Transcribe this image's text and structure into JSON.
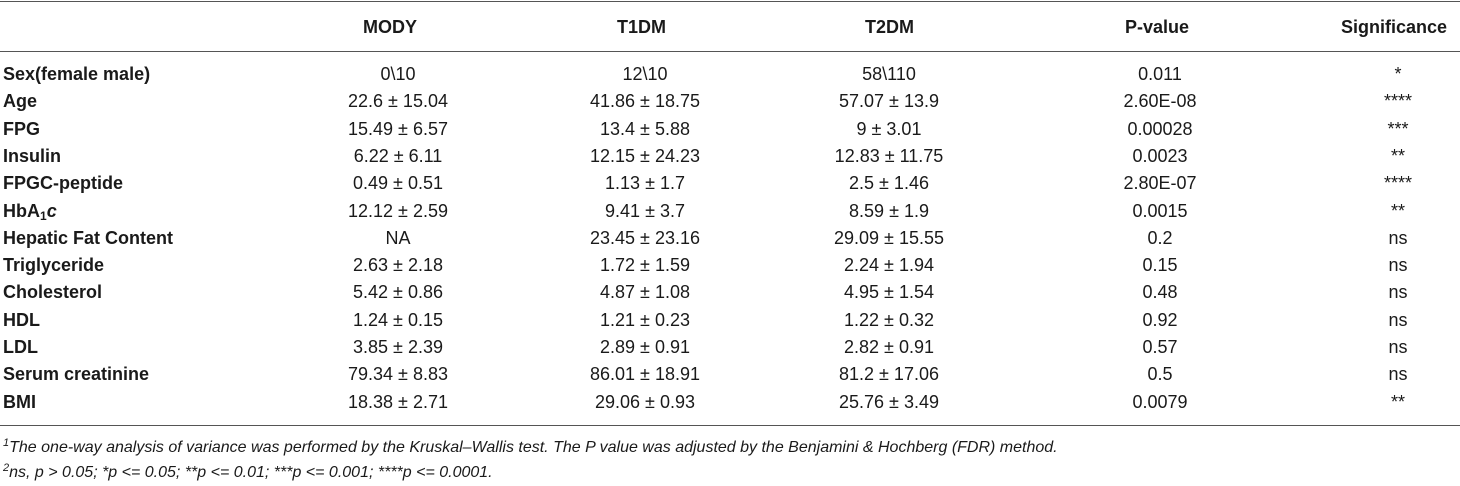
{
  "table": {
    "headers": [
      "MODY",
      "T1DM",
      "T2DM",
      "P-value",
      "Significance"
    ],
    "rows": [
      {
        "label": "Sex(female male)",
        "cells": [
          "0\\10",
          "12\\10",
          "58\\110",
          "0.011",
          "*"
        ]
      },
      {
        "label": "Age",
        "cells": [
          "22.6 ± 15.04",
          "41.86 ± 18.75",
          "57.07 ± 13.9",
          "2.60E-08",
          "****"
        ]
      },
      {
        "label": "FPG",
        "cells": [
          "15.49 ± 6.57",
          "13.4 ± 5.88",
          "9 ± 3.01",
          "0.00028",
          "***"
        ]
      },
      {
        "label": "Insulin",
        "cells": [
          "6.22 ± 6.11",
          "12.15 ± 24.23",
          "12.83 ± 11.75",
          "0.0023",
          "**"
        ]
      },
      {
        "label": "FPGC-peptide",
        "cells": [
          "0.49 ± 0.51",
          "1.13 ± 1.7",
          "2.5 ± 1.46",
          "2.80E-07",
          "****"
        ]
      },
      {
        "label": "HbA1c",
        "label_parts": {
          "base": "HbA",
          "sub": "1",
          "italic": "c"
        },
        "cells": [
          "12.12 ± 2.59",
          "9.41 ± 3.7",
          "8.59 ± 1.9",
          "0.0015",
          "**"
        ]
      },
      {
        "label": "Hepatic Fat Content",
        "cells": [
          "NA",
          "23.45 ± 23.16",
          "29.09 ± 15.55",
          "0.2",
          "ns"
        ]
      },
      {
        "label": "Triglyceride",
        "cells": [
          "2.63 ± 2.18",
          "1.72 ± 1.59",
          "2.24 ± 1.94",
          "0.15",
          "ns"
        ]
      },
      {
        "label": "Cholesterol",
        "cells": [
          "5.42 ± 0.86",
          "4.87 ± 1.08",
          "4.95 ± 1.54",
          "0.48",
          "ns"
        ]
      },
      {
        "label": "HDL",
        "cells": [
          "1.24 ± 0.15",
          "1.21 ± 0.23",
          "1.22 ± 0.32",
          "0.92",
          "ns"
        ]
      },
      {
        "label": "LDL",
        "cells": [
          "3.85 ± 2.39",
          "2.89 ± 0.91",
          "2.82 ± 0.91",
          "0.57",
          "ns"
        ]
      },
      {
        "label": "Serum creatinine",
        "cells": [
          "79.34 ± 8.83",
          "86.01 ± 18.91",
          "81.2 ± 17.06",
          "0.5",
          "ns"
        ]
      },
      {
        "label": "BMI",
        "cells": [
          "18.38 ± 2.71",
          "29.06 ± 0.93",
          "25.76 ± 3.49",
          "0.0079",
          "**"
        ]
      }
    ]
  },
  "footnotes": [
    {
      "mark": "1",
      "text": "The one-way analysis of variance was performed by the Kruskal–Wallis test. The P value was adjusted by the Benjamini & Hochberg (FDR) method."
    },
    {
      "mark": "2",
      "text": "ns, p > 0.05; *p <= 0.05; **p <= 0.01; ***p <= 0.001; ****p <= 0.0001."
    }
  ]
}
